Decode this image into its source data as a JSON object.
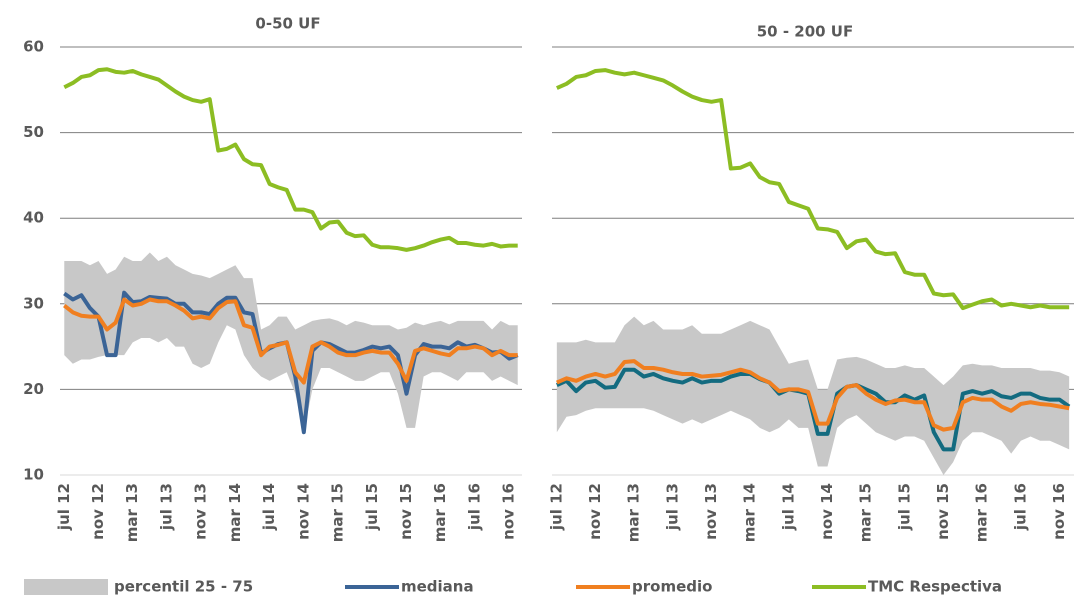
{
  "chart_data": [
    {
      "type": "line",
      "title": "0-50 UF",
      "categories": [
        "jul 12",
        null,
        null,
        null,
        "nov 12",
        null,
        null,
        null,
        "mar 13",
        null,
        null,
        null,
        "jul 13",
        null,
        null,
        null,
        "nov 13",
        null,
        null,
        null,
        "mar 14",
        null,
        null,
        null,
        "jul 14",
        null,
        null,
        null,
        "nov 14",
        null,
        null,
        null,
        "mar 15",
        null,
        null,
        null,
        "jul 15",
        null,
        null,
        null,
        "nov 15",
        null,
        null,
        null,
        "mar 16",
        null,
        null,
        null,
        "jul 16",
        null,
        null,
        null,
        "nov 16",
        null
      ],
      "ylim": [
        10,
        60
      ],
      "yticks": [
        10,
        20,
        30,
        40,
        50,
        60
      ],
      "grid": true,
      "series": [
        {
          "name": "percentil 25 - 75",
          "color": "#c8c8c8",
          "upper": [
            35,
            35,
            35,
            34.5,
            35,
            33.5,
            34,
            35.5,
            35,
            35,
            36,
            35,
            35.5,
            34.5,
            34,
            33.5,
            33.3,
            33,
            33.5,
            34,
            34.5,
            33,
            33,
            27,
            27.5,
            28.5,
            28.5,
            27,
            27.5,
            28,
            28.2,
            28.3,
            28,
            27.5,
            28,
            27.8,
            27.5,
            27.5,
            27.5,
            27,
            27.2,
            27.8,
            27.5,
            27.8,
            28,
            27.6,
            28,
            28,
            28,
            28,
            27,
            28,
            27.5,
            27.5
          ],
          "lower": [
            24,
            23,
            23.5,
            23.5,
            23.8,
            24,
            24,
            24,
            25.5,
            26,
            26,
            25.5,
            26,
            25,
            25,
            23,
            22.5,
            23,
            25.5,
            27.5,
            27,
            24,
            22.5,
            21.5,
            21,
            21.5,
            22,
            19.5,
            15,
            20,
            22.5,
            22.5,
            22,
            21.5,
            21,
            21,
            21.5,
            22,
            22,
            19.5,
            15.5,
            15.5,
            21.5,
            22,
            22,
            21.5,
            21,
            22,
            22,
            22,
            21,
            21.5,
            21,
            20.5
          ]
        },
        {
          "name": "mediana",
          "color": "#3b6496",
          "values": [
            31.2,
            30.5,
            31,
            29.5,
            28.5,
            24,
            24,
            31.3,
            30.2,
            30.3,
            30.8,
            30.7,
            30.6,
            30,
            30,
            29,
            29,
            28.8,
            30,
            30.7,
            30.7,
            29,
            28.8,
            24.2,
            24.8,
            25.3,
            25.5,
            21.5,
            15,
            24.5,
            25.5,
            25.3,
            24.8,
            24.3,
            24.3,
            24.6,
            25,
            24.8,
            25,
            24,
            19.5,
            24,
            25.3,
            25,
            25,
            24.8,
            25.5,
            25,
            25.2,
            24.8,
            24.3,
            24.4,
            23.6,
            24
          ]
        },
        {
          "name": "promedio",
          "color": "#f07f20",
          "values": [
            29.8,
            29,
            28.6,
            28.5,
            28.5,
            27,
            27.8,
            30.5,
            29.8,
            30,
            30.5,
            30.3,
            30.3,
            29.8,
            29.2,
            28.3,
            28.5,
            28.3,
            29.5,
            30.2,
            30.3,
            27.5,
            27.2,
            24,
            25,
            25.2,
            25.5,
            22,
            20.8,
            25,
            25.5,
            25,
            24.3,
            24,
            24,
            24.3,
            24.5,
            24.3,
            24.3,
            23,
            21,
            24.5,
            24.8,
            24.5,
            24.2,
            24,
            24.8,
            24.8,
            25,
            24.8,
            24,
            24.5,
            24,
            24
          ]
        },
        {
          "name": "TMC Respectiva",
          "color": "#8cbd23",
          "values": [
            55.3,
            55.8,
            56.5,
            56.7,
            57.3,
            57.4,
            57.1,
            57,
            57.2,
            56.8,
            56.5,
            56.2,
            55.5,
            54.8,
            54.2,
            53.8,
            53.6,
            53.9,
            47.9,
            48.1,
            48.6,
            46.9,
            46.3,
            46.2,
            44,
            43.6,
            43.3,
            41,
            41,
            40.7,
            38.8,
            39.5,
            39.6,
            38.3,
            37.9,
            38,
            36.9,
            36.6,
            36.6,
            36.5,
            36.3,
            36.5,
            36.8,
            37.2,
            37.5,
            37.7,
            37.1,
            37.1,
            36.9,
            36.8,
            37,
            36.7,
            36.8,
            36.8
          ]
        }
      ]
    },
    {
      "type": "line",
      "title": "50 - 200 UF",
      "categories": [
        "jul 12",
        null,
        null,
        null,
        "nov 12",
        null,
        null,
        null,
        "mar 13",
        null,
        null,
        null,
        "jul 13",
        null,
        null,
        null,
        "nov 13",
        null,
        null,
        null,
        "mar 14",
        null,
        null,
        null,
        "jul 14",
        null,
        null,
        null,
        "nov 14",
        null,
        null,
        null,
        "mar 15",
        null,
        null,
        null,
        "jul 15",
        null,
        null,
        null,
        "nov 15",
        null,
        null,
        null,
        "mar 16",
        null,
        null,
        null,
        "jul 16",
        null,
        null,
        null,
        "nov 16",
        null
      ],
      "ylim": [
        10,
        60
      ],
      "yticks": [
        10,
        20,
        30,
        40,
        50,
        60
      ],
      "grid": true,
      "series": [
        {
          "color": "#c8c8c8",
          "upper": [
            25.5,
            25.5,
            25.5,
            25.8,
            25.5,
            25.5,
            25.5,
            27.5,
            28.5,
            27.5,
            28,
            27,
            27,
            27,
            27.5,
            26.5,
            26.5,
            26.5,
            27,
            27.5,
            28,
            27.5,
            27,
            25,
            23,
            23.3,
            23.5,
            20,
            20,
            23.5,
            23.7,
            23.8,
            23.5,
            23,
            22.5,
            22.5,
            22.8,
            22.5,
            22.5,
            21.5,
            20.5,
            21.5,
            22.8,
            23,
            22.8,
            22.8,
            22.5,
            22.5,
            22.5,
            22.5,
            22.2,
            22.2,
            22,
            21.5
          ],
          "lower": [
            15,
            16.8,
            17,
            17.5,
            17.8,
            17.8,
            17.8,
            17.8,
            17.8,
            17.8,
            17.5,
            17,
            16.5,
            16,
            16.5,
            16,
            16.5,
            17,
            17.5,
            17,
            16.5,
            15.5,
            15,
            15.5,
            16.5,
            15.5,
            15.5,
            11,
            11,
            15.5,
            16.5,
            17,
            16,
            15,
            14.5,
            14,
            14.5,
            14.5,
            14,
            12,
            10,
            11.5,
            14,
            15,
            15,
            14.5,
            14,
            12.5,
            14,
            14.5,
            14,
            14,
            13.5,
            13
          ]
        },
        {
          "color": "#136b80",
          "values": [
            20.5,
            21,
            19.8,
            20.8,
            21,
            20.2,
            20.3,
            22.3,
            22.3,
            21.5,
            21.8,
            21.3,
            21,
            20.8,
            21.3,
            20.8,
            21,
            21,
            21.5,
            21.8,
            21.8,
            21.2,
            20.8,
            19.5,
            20,
            19.8,
            19.5,
            14.8,
            14.8,
            19.5,
            20.3,
            20.5,
            20,
            19.5,
            18.5,
            18.5,
            19.3,
            18.8,
            19.3,
            15,
            13,
            13,
            19.5,
            19.8,
            19.5,
            19.8,
            19.2,
            19,
            19.5,
            19.5,
            19,
            18.8,
            18.8,
            18
          ]
        },
        {
          "color": "#f07f20",
          "values": [
            20.8,
            21.3,
            21,
            21.5,
            21.8,
            21.5,
            21.8,
            23.2,
            23.3,
            22.5,
            22.5,
            22.3,
            22,
            21.8,
            21.8,
            21.5,
            21.6,
            21.7,
            22,
            22.3,
            22,
            21.3,
            20.8,
            19.8,
            20,
            20,
            19.7,
            16,
            16,
            19,
            20.3,
            20.5,
            19.5,
            18.8,
            18.3,
            18.7,
            18.8,
            18.5,
            18.5,
            15.8,
            15.3,
            15.5,
            18.5,
            19,
            18.8,
            18.8,
            18,
            17.5,
            18.3,
            18.5,
            18.3,
            18.2,
            18,
            17.8
          ]
        },
        {
          "color": "#8cbd23",
          "values": [
            55.2,
            55.7,
            56.5,
            56.7,
            57.2,
            57.3,
            57,
            56.8,
            57,
            56.7,
            56.4,
            56.1,
            55.5,
            54.8,
            54.2,
            53.8,
            53.6,
            53.8,
            45.8,
            45.9,
            46.4,
            44.8,
            44.2,
            44,
            41.9,
            41.5,
            41.1,
            38.8,
            38.7,
            38.4,
            36.5,
            37.3,
            37.5,
            36.1,
            35.8,
            35.9,
            33.7,
            33.4,
            33.4,
            31.2,
            31,
            31.1,
            29.5,
            29.9,
            30.3,
            30.5,
            29.8,
            30,
            29.8,
            29.6,
            29.8,
            29.6,
            29.6,
            29.6
          ]
        }
      ]
    }
  ]
}
